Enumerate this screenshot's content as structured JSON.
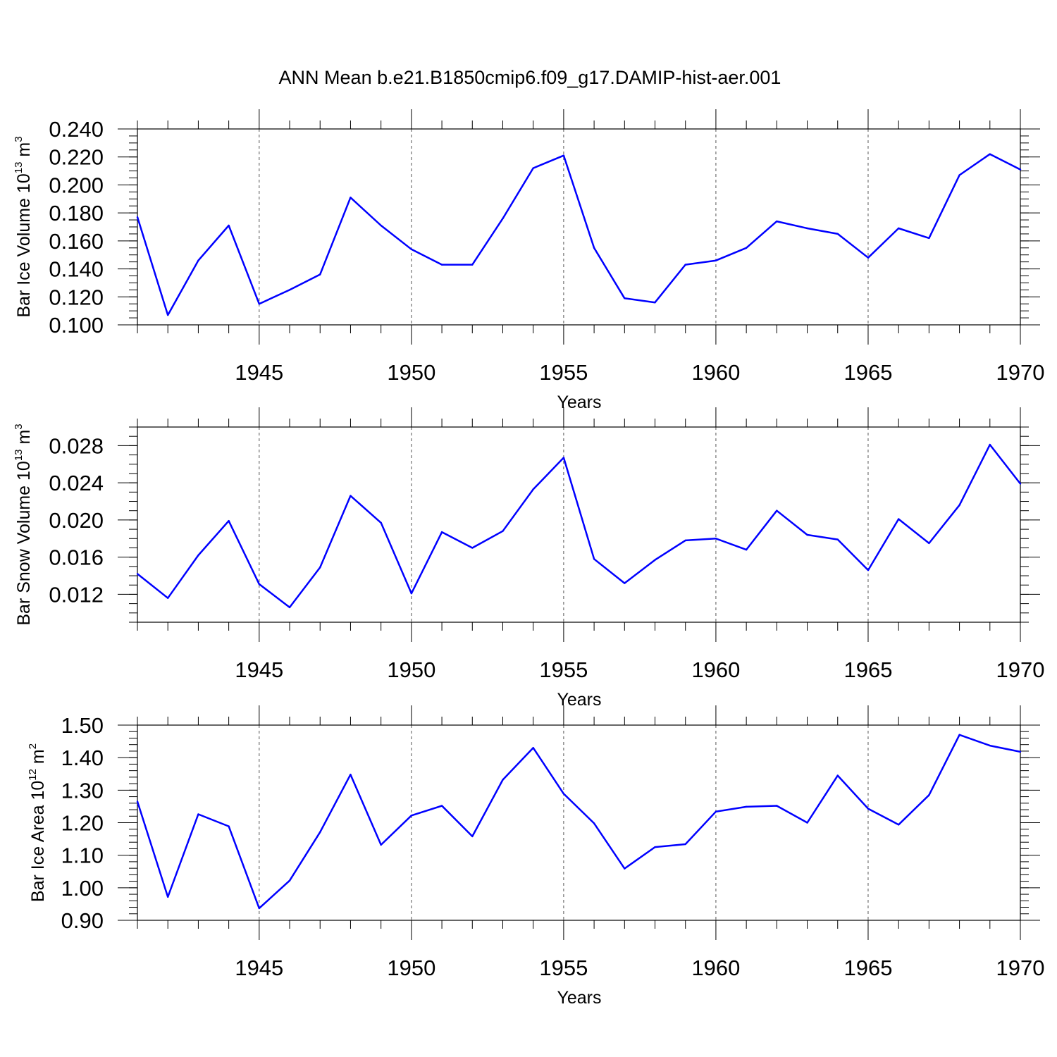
{
  "title": "ANN Mean b.e21.B1850cmip6.f09_g17.DAMIP-hist-aer.001",
  "line_color": "#0000ff",
  "grid_color": "#555555",
  "chart_data": [
    {
      "type": "line",
      "ylabel": {
        "main": "Bar Ice Volume 10",
        "exp": "13",
        "unit": " m",
        "unit_exp": "3"
      },
      "xlabel": "Years",
      "xlim": [
        1941,
        1970
      ],
      "ylim": [
        0.1,
        0.24
      ],
      "yticks": [
        0.1,
        0.12,
        0.14,
        0.16,
        0.18,
        0.2,
        0.22,
        0.24
      ],
      "ytick_labels": [
        "0.100",
        "0.120",
        "0.140",
        "0.160",
        "0.180",
        "0.200",
        "0.220",
        "0.240"
      ],
      "yminor": 0.005,
      "xticks": [
        1945,
        1950,
        1955,
        1960,
        1965,
        1970
      ],
      "xtick_labels": [
        "1945",
        "1950",
        "1955",
        "1960",
        "1965",
        "1970"
      ],
      "x": [
        1941,
        1942,
        1943,
        1944,
        1945,
        1946,
        1947,
        1948,
        1949,
        1950,
        1951,
        1952,
        1953,
        1954,
        1955,
        1956,
        1957,
        1958,
        1959,
        1960,
        1961,
        1962,
        1963,
        1964,
        1965,
        1966,
        1967,
        1968,
        1969,
        1970
      ],
      "values": [
        0.177,
        0.107,
        0.146,
        0.171,
        0.115,
        0.125,
        0.136,
        0.191,
        0.171,
        0.154,
        0.143,
        0.143,
        0.176,
        0.212,
        0.221,
        0.155,
        0.119,
        0.116,
        0.143,
        0.146,
        0.155,
        0.174,
        0.169,
        0.165,
        0.148,
        0.169,
        0.162,
        0.207,
        0.222,
        0.211
      ]
    },
    {
      "type": "line",
      "ylabel": {
        "main": "Bar Snow Volume 10",
        "exp": "13",
        "unit": " m",
        "unit_exp": "3"
      },
      "xlabel": "Years",
      "xlim": [
        1941,
        1970
      ],
      "ylim": [
        0.009,
        0.03
      ],
      "yticks": [
        0.012,
        0.016,
        0.02,
        0.024,
        0.028
      ],
      "ytick_labels": [
        "0.012",
        "0.016",
        "0.020",
        "0.024",
        "0.028"
      ],
      "yminor": 0.001,
      "xticks": [
        1945,
        1950,
        1955,
        1960,
        1965,
        1970
      ],
      "xtick_labels": [
        "1945",
        "1950",
        "1955",
        "1960",
        "1965",
        "1970"
      ],
      "x": [
        1941,
        1942,
        1943,
        1944,
        1945,
        1946,
        1947,
        1948,
        1949,
        1950,
        1951,
        1952,
        1953,
        1954,
        1955,
        1956,
        1957,
        1958,
        1959,
        1960,
        1961,
        1962,
        1963,
        1964,
        1965,
        1966,
        1967,
        1968,
        1969,
        1970
      ],
      "values": [
        0.0142,
        0.0116,
        0.0162,
        0.0199,
        0.0131,
        0.0106,
        0.0149,
        0.0226,
        0.0197,
        0.0121,
        0.0187,
        0.017,
        0.0188,
        0.0233,
        0.0267,
        0.0158,
        0.0132,
        0.0157,
        0.0178,
        0.018,
        0.0168,
        0.021,
        0.0184,
        0.0179,
        0.0146,
        0.0201,
        0.0175,
        0.0216,
        0.0281,
        0.0239
      ]
    },
    {
      "type": "line",
      "ylabel": {
        "main": "Bar Ice Area 10",
        "exp": "12",
        "unit": " m",
        "unit_exp": "2"
      },
      "xlabel": "Years",
      "xlim": [
        1941,
        1970
      ],
      "ylim": [
        0.9,
        1.5
      ],
      "yticks": [
        0.9,
        1.0,
        1.1,
        1.2,
        1.3,
        1.4,
        1.5
      ],
      "ytick_labels": [
        "0.90",
        "1.00",
        "1.10",
        "1.20",
        "1.30",
        "1.40",
        "1.50"
      ],
      "yminor": 0.02,
      "xticks": [
        1945,
        1950,
        1955,
        1960,
        1965,
        1970
      ],
      "xtick_labels": [
        "1945",
        "1950",
        "1955",
        "1960",
        "1965",
        "1970"
      ],
      "x": [
        1941,
        1942,
        1943,
        1944,
        1945,
        1946,
        1947,
        1948,
        1949,
        1950,
        1951,
        1952,
        1953,
        1954,
        1955,
        1956,
        1957,
        1958,
        1959,
        1960,
        1961,
        1962,
        1963,
        1964,
        1965,
        1966,
        1967,
        1968,
        1969,
        1970
      ],
      "values": [
        1.265,
        0.972,
        1.226,
        1.189,
        0.937,
        1.022,
        1.171,
        1.348,
        1.132,
        1.222,
        1.252,
        1.158,
        1.332,
        1.43,
        1.289,
        1.198,
        1.059,
        1.125,
        1.134,
        1.234,
        1.249,
        1.252,
        1.2,
        1.345,
        1.243,
        1.194,
        1.285,
        1.47,
        1.437,
        1.418
      ]
    }
  ]
}
